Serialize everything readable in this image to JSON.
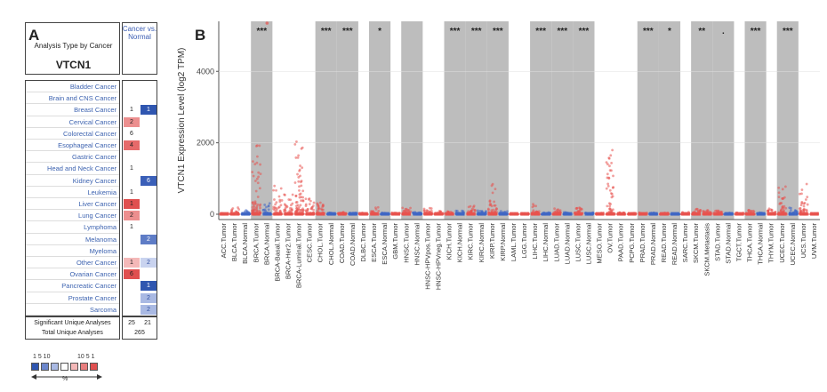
{
  "panel_a": {
    "letter": "A",
    "subtitle": "Analysis Type by Cancer",
    "gene": "VTCN1",
    "column_header": "Cancer vs. Normal",
    "cancers": [
      {
        "name": "Bladder Cancer",
        "over": "",
        "under": ""
      },
      {
        "name": "Brain and CNS Cancer",
        "over": "",
        "under": ""
      },
      {
        "name": "Breast Cancer",
        "over": "1",
        "under": "1"
      },
      {
        "name": "Cervical Cancer",
        "over": "2",
        "under": ""
      },
      {
        "name": "Colorectal Cancer",
        "over": "6",
        "under": ""
      },
      {
        "name": "Esophageal Cancer",
        "over": "4",
        "under": ""
      },
      {
        "name": "Gastric Cancer",
        "over": "",
        "under": ""
      },
      {
        "name": "Head and Neck Cancer",
        "over": "1",
        "under": ""
      },
      {
        "name": "Kidney Cancer",
        "over": "",
        "under": "6"
      },
      {
        "name": "Leukemia",
        "over": "1",
        "under": ""
      },
      {
        "name": "Liver Cancer",
        "over": "1",
        "under": ""
      },
      {
        "name": "Lung Cancer",
        "over": "2",
        "under": ""
      },
      {
        "name": "Lymphoma",
        "over": "1",
        "under": ""
      },
      {
        "name": "Melanoma",
        "over": "",
        "under": "2"
      },
      {
        "name": "Myeloma",
        "over": "",
        "under": ""
      },
      {
        "name": "Other Cancer",
        "over": "1",
        "under": "2"
      },
      {
        "name": "Ovarian Cancer",
        "over": "6",
        "under": ""
      },
      {
        "name": "Pancreatic Cancer",
        "over": "",
        "under": "1"
      },
      {
        "name": "Prostate Cancer",
        "over": "",
        "under": "2"
      },
      {
        "name": "Sarcoma",
        "over": "",
        "under": "2"
      }
    ],
    "significant_label": "Significant Unique Analyses",
    "significant_over": "25",
    "significant_under": "21",
    "total_label": "Total Unique Analyses",
    "total_value": "265",
    "legend_blue_nums": "1  5  10",
    "legend_red_nums": "10  5  1",
    "legend_percent": "%"
  },
  "colors": {
    "red": "#e05050",
    "blue": "#2f56b0",
    "tumor_dot": "#e8524e",
    "normal_dot": "#3f66c4",
    "shade": "#bdbdbd"
  },
  "chart_data": {
    "type": "scatter",
    "panel_letter": "B",
    "ylabel": "VTCN1 Expression Level (log2 TPM)",
    "xlabel": "",
    "ylim": [
      0,
      5400
    ],
    "yticks": [
      0,
      2000,
      4000
    ],
    "categories": [
      "ACC.Tumor",
      "BLCA.Tumor",
      "BLCA.Normal",
      "BRCA.Tumor",
      "BRCA.Normal",
      "BRCA-Basal.Tumor",
      "BRCA-Her2.Tumor",
      "BRCA-Luminal.Tumor",
      "CESC.Tumor",
      "CHOL.Tumor",
      "CHOL.Normal",
      "COAD.Tumor",
      "COAD.Normal",
      "DLBC.Tumor",
      "ESCA.Tumor",
      "ESCA.Normal",
      "GBM.Tumor",
      "HNSC.Tumor",
      "HNSC.Normal",
      "HNSC-HPVpos.Tumor",
      "HNSC-HPVneg.Tumor",
      "KICH.Tumor",
      "KICH.Normal",
      "KIRC.Tumor",
      "KIRC.Normal",
      "KIRP.Tumor",
      "KIRP.Normal",
      "LAML.Tumor",
      "LGG.Tumor",
      "LIHC.Tumor",
      "LIHC.Normal",
      "LUAD.Tumor",
      "LUAD.Normal",
      "LUSC.Tumor",
      "LUSC.Normal",
      "MESO.Tumor",
      "OV.Tumor",
      "PAAD.Tumor",
      "PCPG.Tumor",
      "PRAD.Tumor",
      "PRAD.Normal",
      "READ.Tumor",
      "READ.Normal",
      "SARC.Tumor",
      "SKCM.Tumor",
      "SKCM.Metastasis",
      "STAD.Tumor",
      "STAD.Normal",
      "TGCT.Tumor",
      "THCA.Tumor",
      "THCA.Normal",
      "THYM.Tumor",
      "UCEC.Tumor",
      "UCEC.Normal",
      "UCS.Tumor",
      "UVM.Tumor"
    ],
    "shaded_pairs": [
      [
        3,
        4
      ],
      [
        9,
        10
      ],
      [
        11,
        12
      ],
      [
        14,
        15
      ],
      [
        17,
        18
      ],
      [
        21,
        22
      ],
      [
        23,
        24
      ],
      [
        25,
        26
      ],
      [
        29,
        30
      ],
      [
        31,
        32
      ],
      [
        33,
        34
      ],
      [
        39,
        40
      ],
      [
        41,
        42
      ],
      [
        44,
        45
      ],
      [
        46,
        47
      ],
      [
        49,
        50
      ],
      [
        52,
        53
      ]
    ],
    "significance": [
      {
        "pair": [
          3,
          4
        ],
        "label": "***"
      },
      {
        "pair": [
          9,
          10
        ],
        "label": "***"
      },
      {
        "pair": [
          11,
          12
        ],
        "label": "***"
      },
      {
        "pair": [
          14,
          15
        ],
        "label": "*"
      },
      {
        "pair": [
          21,
          22
        ],
        "label": "***"
      },
      {
        "pair": [
          23,
          24
        ],
        "label": "***"
      },
      {
        "pair": [
          25,
          26
        ],
        "label": "***"
      },
      {
        "pair": [
          29,
          30
        ],
        "label": "***"
      },
      {
        "pair": [
          31,
          32
        ],
        "label": "***"
      },
      {
        "pair": [
          33,
          34
        ],
        "label": "***"
      },
      {
        "pair": [
          39,
          40
        ],
        "label": "***"
      },
      {
        "pair": [
          41,
          42
        ],
        "label": "*"
      },
      {
        "pair": [
          44,
          45
        ],
        "label": "**"
      },
      {
        "pair": [
          46,
          47
        ],
        "label": "."
      },
      {
        "pair": [
          49,
          50
        ],
        "label": "***"
      },
      {
        "pair": [
          52,
          53
        ],
        "label": "***"
      }
    ],
    "max_values": [
      30,
      250,
      120,
      2250,
      350,
      820,
      600,
      2250,
      450,
      350,
      40,
      60,
      40,
      40,
      200,
      40,
      40,
      250,
      60,
      200,
      150,
      80,
      100,
      250,
      120,
      850,
      100,
      20,
      30,
      350,
      50,
      200,
      60,
      300,
      50,
      40,
      1800,
      50,
      40,
      50,
      40,
      40,
      20,
      80,
      150,
      120,
      100,
      40,
      60,
      200,
      60,
      200,
      800,
      200,
      850,
      30
    ],
    "outlier_high": {
      "index": 4,
      "value": 5350
    }
  }
}
